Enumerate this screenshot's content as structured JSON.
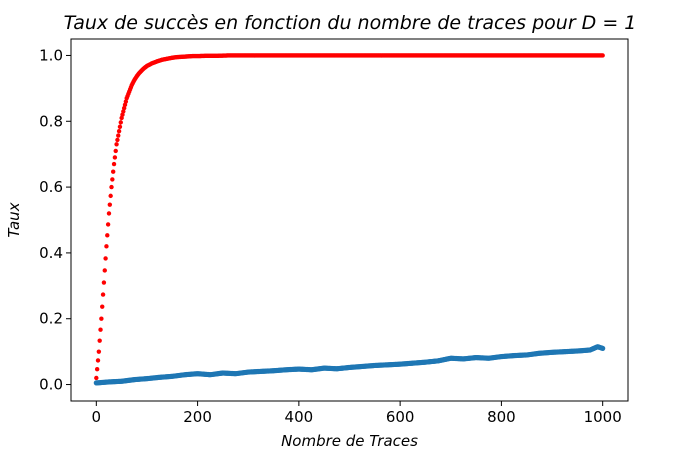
{
  "chart_data": {
    "type": "scatter",
    "title": "Taux de succès en fonction du nombre de traces pour D = 1",
    "xlabel": "Nombre de Traces",
    "ylabel": "Taux",
    "xlim": [
      -50,
      1050
    ],
    "ylim": [
      -0.05,
      1.05
    ],
    "x_ticks": [
      0,
      200,
      400,
      600,
      800,
      1000
    ],
    "y_ticks": [
      0.0,
      0.2,
      0.4,
      0.6,
      0.8,
      1.0
    ],
    "x_tick_labels": [
      "0",
      "200",
      "400",
      "600",
      "800",
      "1000"
    ],
    "y_tick_labels": [
      "0.0",
      "0.2",
      "0.4",
      "0.6",
      "0.8",
      "1.0"
    ],
    "grid": false,
    "legend": false,
    "series": [
      {
        "color": "#ff0000",
        "x": [
          0,
          5,
          10,
          15,
          20,
          25,
          30,
          35,
          40,
          45,
          50,
          55,
          60,
          65,
          70,
          75,
          80,
          85,
          90,
          95,
          100,
          110,
          120,
          130,
          140,
          150,
          160,
          170,
          180,
          190,
          200,
          220,
          240,
          260,
          280,
          300,
          350,
          400,
          450,
          500,
          550,
          600,
          650,
          700,
          750,
          800,
          850,
          900,
          950,
          1000
        ],
        "y": [
          0.02,
          0.1,
          0.2,
          0.31,
          0.42,
          0.52,
          0.6,
          0.67,
          0.73,
          0.77,
          0.81,
          0.84,
          0.87,
          0.89,
          0.91,
          0.925,
          0.937,
          0.947,
          0.955,
          0.962,
          0.968,
          0.976,
          0.982,
          0.987,
          0.99,
          0.993,
          0.995,
          0.996,
          0.997,
          0.998,
          0.998,
          0.999,
          0.999,
          1.0,
          1.0,
          1.0,
          1.0,
          1.0,
          1.0,
          1.0,
          1.0,
          1.0,
          1.0,
          1.0,
          1.0,
          1.0,
          1.0,
          1.0,
          1.0,
          1.0
        ]
      },
      {
        "color": "#1f77b4",
        "x": [
          0,
          25,
          50,
          75,
          100,
          125,
          150,
          175,
          200,
          225,
          250,
          275,
          300,
          325,
          350,
          375,
          400,
          425,
          450,
          475,
          500,
          525,
          550,
          575,
          600,
          625,
          650,
          675,
          700,
          725,
          750,
          775,
          800,
          825,
          850,
          875,
          900,
          925,
          950,
          975,
          990,
          1000
        ],
        "y": [
          0.005,
          0.008,
          0.01,
          0.015,
          0.018,
          0.022,
          0.025,
          0.03,
          0.033,
          0.03,
          0.035,
          0.033,
          0.038,
          0.04,
          0.042,
          0.045,
          0.047,
          0.045,
          0.05,
          0.048,
          0.052,
          0.055,
          0.058,
          0.06,
          0.062,
          0.065,
          0.068,
          0.072,
          0.08,
          0.078,
          0.082,
          0.08,
          0.085,
          0.088,
          0.09,
          0.095,
          0.098,
          0.1,
          0.102,
          0.105,
          0.115,
          0.11
        ]
      }
    ]
  }
}
